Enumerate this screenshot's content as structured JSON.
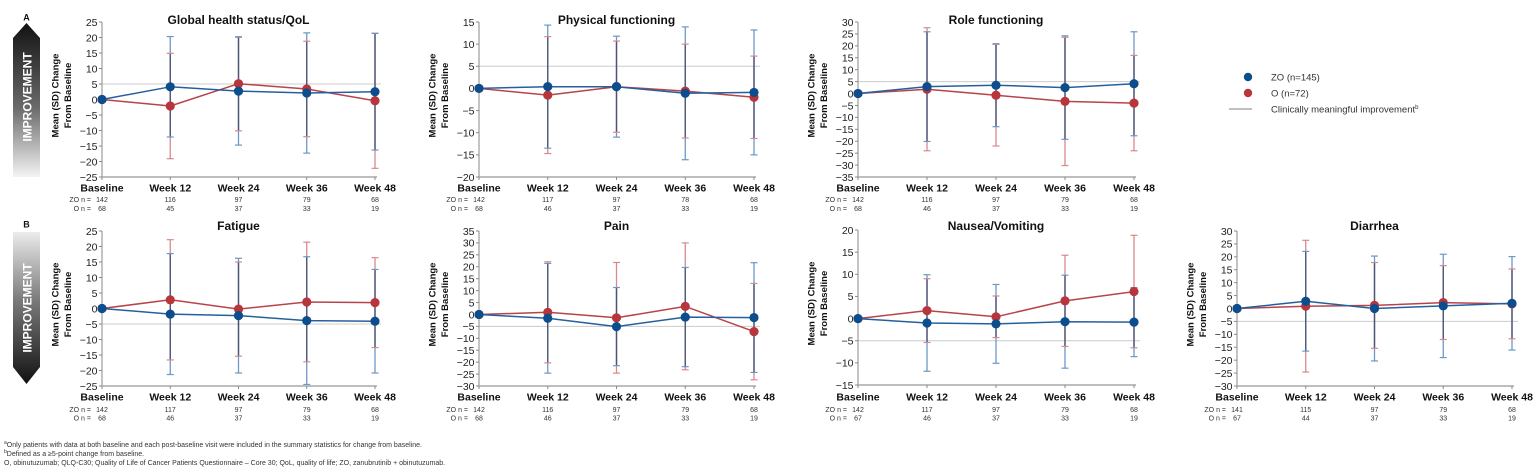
{
  "panels": [
    {
      "label": "A",
      "arrow_text": "IMPROVEMENT",
      "arrow_direction": "up"
    },
    {
      "label": "B",
      "arrow_text": "IMPROVEMENT",
      "arrow_direction": "down"
    }
  ],
  "colors": {
    "ZO": "#0c4e8d",
    "O": "#b8353c",
    "ZO_line": "#25609d",
    "O_line": "#b8444b",
    "ZO_error_bar": "#6b98c5",
    "O_error_bar": "#d8898d",
    "error_bar_overlap": "#4c5473",
    "reference_line": "#cccccc",
    "legend_line": "#9a9a9a"
  },
  "legend": {
    "items": [
      {
        "label": "ZO (n=145)",
        "marker": "dot",
        "series": "ZO"
      },
      {
        "label": "O (n=72)",
        "marker": "dot",
        "series": "O"
      },
      {
        "label": "Clinically meaningful improvement",
        "sup": "b",
        "marker": "line"
      }
    ]
  },
  "footnotes": [
    {
      "marker": "a",
      "text": "Only patients with data at both baseline and each post-baseline visit were included in the summary statistics for change from baseline."
    },
    {
      "marker": "b",
      "text": "Defined as a ≥5-point change from baseline."
    },
    {
      "marker": "",
      "text": "O, obinutuzumab; QLQ-C30; Quality of Life of Cancer Patients Questionnaire – Core 30; QoL, quality of life; ZO, zanubrutinib + obinutuzumab."
    }
  ],
  "chart_data": [
    {
      "type": "line",
      "panel": "A",
      "title": "Global health status/QoL",
      "ylabel": [
        "Mean (SD) Change",
        "From Baseline"
      ],
      "categories": [
        "Baseline",
        "Week 12",
        "Week 24",
        "Week 36",
        "Week 48"
      ],
      "ylim": [
        -25,
        25
      ],
      "yticks": [
        "25",
        "20",
        "15",
        "10",
        "5",
        "0",
        "−5",
        "−10",
        "−15",
        "−20",
        "−25"
      ],
      "reference_line": 5,
      "grid": false,
      "series": [
        {
          "name": "ZO",
          "mean": [
            0,
            4.1,
            2.7,
            2.1,
            2.5
          ],
          "sd": [
            0,
            16.2,
            17.4,
            19.4,
            18.8
          ]
        },
        {
          "name": "O",
          "mean": [
            0,
            -2.1,
            5.1,
            3.4,
            -0.4
          ],
          "sd": [
            0,
            17.0,
            15.2,
            15.4,
            21.8
          ]
        }
      ],
      "n_counts": [
        {
          "label": "ZO n =",
          "values": [
            142,
            116,
            97,
            79,
            68
          ]
        },
        {
          "label": "O n =",
          "values": [
            68,
            45,
            37,
            33,
            19
          ]
        }
      ]
    },
    {
      "type": "line",
      "panel": "A",
      "title": "Physical functioning",
      "ylabel": [
        "Mean (SD) Change",
        "From Baseline"
      ],
      "categories": [
        "Baseline",
        "Week 12",
        "Week 24",
        "Week 36",
        "Week 48"
      ],
      "ylim": [
        -20,
        15
      ],
      "yticks": [
        "15",
        "10",
        "5",
        "0",
        "−5",
        "−10",
        "−15",
        "−20"
      ],
      "reference_line": 5,
      "grid": false,
      "series": [
        {
          "name": "ZO",
          "mean": [
            0,
            0.4,
            0.4,
            -1.1,
            -0.9
          ],
          "sd": [
            0,
            13.9,
            11.4,
            15.0,
            14.1
          ]
        },
        {
          "name": "O",
          "mean": [
            0,
            -1.5,
            0.4,
            -0.6,
            -2.0
          ],
          "sd": [
            0,
            13.2,
            10.3,
            10.6,
            9.3
          ]
        }
      ],
      "n_counts": [
        {
          "label": "ZO n =",
          "values": [
            142,
            117,
            97,
            78,
            68
          ]
        },
        {
          "label": "O n =",
          "values": [
            68,
            46,
            37,
            33,
            19
          ]
        }
      ]
    },
    {
      "type": "line",
      "panel": "A",
      "title": "Role functioning",
      "ylabel": [
        "Mean (SD) Change",
        "From Baseline"
      ],
      "categories": [
        "Baseline",
        "Week 12",
        "Week 24",
        "Week 36",
        "Week 48"
      ],
      "ylim": [
        -35,
        30
      ],
      "yticks": [
        "30",
        "25",
        "20",
        "15",
        "10",
        "5",
        "0",
        "−5",
        "−10",
        "−15",
        "−20",
        "−25",
        "−30",
        "−35"
      ],
      "reference_line": 5,
      "grid": false,
      "series": [
        {
          "name": "ZO",
          "mean": [
            0,
            2.9,
            3.5,
            2.5,
            4.1
          ],
          "sd": [
            0,
            23.0,
            17.4,
            21.7,
            21.8
          ]
        },
        {
          "name": "O",
          "mean": [
            0,
            1.8,
            -0.7,
            -3.3,
            -4.0
          ],
          "sd": [
            0,
            25.8,
            21.3,
            26.9,
            20.0
          ]
        }
      ],
      "n_counts": [
        {
          "label": "ZO n =",
          "values": [
            142,
            116,
            97,
            79,
            68
          ]
        },
        {
          "label": "O n =",
          "values": [
            68,
            46,
            37,
            33,
            19
          ]
        }
      ]
    },
    {
      "type": "line",
      "panel": "B",
      "title": "Fatigue",
      "ylabel": [
        "Mean (SD) Change",
        "From Baseline"
      ],
      "categories": [
        "Baseline",
        "Week 12",
        "Week 24",
        "Week 36",
        "Week 48"
      ],
      "ylim": [
        -25,
        25
      ],
      "yticks": [
        "25",
        "20",
        "15",
        "10",
        "5",
        "0",
        "−5",
        "−10",
        "−15",
        "−20",
        "−25"
      ],
      "reference_line": -5,
      "grid": false,
      "series": [
        {
          "name": "ZO",
          "mean": [
            0,
            -1.8,
            -2.3,
            -3.9,
            -4.1
          ],
          "sd": [
            0,
            19.5,
            18.5,
            20.6,
            16.7
          ]
        },
        {
          "name": "O",
          "mean": [
            0,
            2.8,
            -0.2,
            2.1,
            1.9
          ],
          "sd": [
            0,
            19.4,
            15.2,
            19.3,
            14.5
          ]
        }
      ],
      "n_counts": [
        {
          "label": "ZO n =",
          "values": [
            142,
            117,
            97,
            79,
            68
          ]
        },
        {
          "label": "O n =",
          "values": [
            68,
            46,
            37,
            33,
            19
          ]
        }
      ]
    },
    {
      "type": "line",
      "panel": "B",
      "title": "Pain",
      "ylabel": [
        "Mean (SD) Change",
        "From Baseline"
      ],
      "categories": [
        "Baseline",
        "Week 12",
        "Week 24",
        "Week 36",
        "Week 48"
      ],
      "ylim": [
        -30,
        35
      ],
      "yticks": [
        "35",
        "30",
        "25",
        "20",
        "15",
        "10",
        "5",
        "0",
        "−5",
        "−10",
        "−15",
        "−20",
        "−25",
        "−30"
      ],
      "reference_line": -5,
      "grid": false,
      "series": [
        {
          "name": "ZO",
          "mean": [
            0,
            -1.6,
            -5.1,
            -1.1,
            -1.3
          ],
          "sd": [
            0,
            23.0,
            16.4,
            20.8,
            23.0
          ]
        },
        {
          "name": "O",
          "mean": [
            0,
            0.9,
            -1.4,
            3.4,
            -7.2
          ],
          "sd": [
            0,
            21.2,
            23.2,
            26.6,
            20.2
          ]
        }
      ],
      "n_counts": [
        {
          "label": "ZO n =",
          "values": [
            142,
            116,
            97,
            79,
            68
          ]
        },
        {
          "label": "O n =",
          "values": [
            68,
            46,
            37,
            33,
            19
          ]
        }
      ]
    },
    {
      "type": "line",
      "panel": "B",
      "title": "Nausea/Vomiting",
      "ylabel": [
        "Mean (SD) Change",
        "From Baseline"
      ],
      "categories": [
        "Baseline",
        "Week 12",
        "Week 24",
        "Week 36",
        "Week 48"
      ],
      "ylim": [
        -15,
        20
      ],
      "yticks": [
        "20",
        "15",
        "10",
        "5",
        "0",
        "−5",
        "−10",
        "−15"
      ],
      "reference_line": -5,
      "grid": false,
      "series": [
        {
          "name": "ZO",
          "mean": [
            0,
            -1.0,
            -1.2,
            -0.7,
            -0.8
          ],
          "sd": [
            0,
            10.9,
            8.9,
            10.5,
            7.8
          ]
        },
        {
          "name": "O",
          "mean": [
            0,
            1.8,
            0.4,
            4.0,
            6.1
          ],
          "sd": [
            0,
            7.2,
            4.7,
            10.3,
            12.7
          ]
        }
      ],
      "n_counts": [
        {
          "label": "ZO n =",
          "values": [
            142,
            117,
            97,
            79,
            68
          ]
        },
        {
          "label": "O n =",
          "values": [
            67,
            46,
            37,
            33,
            19
          ]
        }
      ]
    },
    {
      "type": "line",
      "panel": "B",
      "title": "Diarrhea",
      "ylabel": [
        "Mean (SD) Change",
        "From Baseline"
      ],
      "categories": [
        "Baseline",
        "Week 12",
        "Week 24",
        "Week 36",
        "Week 48"
      ],
      "ylim": [
        -30,
        30
      ],
      "yticks": [
        "30",
        "25",
        "20",
        "15",
        "10",
        "5",
        "0",
        "−5",
        "−10",
        "−15",
        "−20",
        "−25",
        "−30"
      ],
      "reference_line": -5,
      "grid": false,
      "series": [
        {
          "name": "ZO",
          "mean": [
            0,
            2.8,
            0.0,
            1.0,
            2.0
          ],
          "sd": [
            0,
            19.3,
            20.3,
            20.0,
            18.1
          ]
        },
        {
          "name": "O",
          "mean": [
            0,
            0.9,
            1.2,
            2.3,
            1.8
          ],
          "sd": [
            0,
            25.5,
            16.6,
            14.3,
            13.5
          ]
        }
      ],
      "n_counts": [
        {
          "label": "ZO n =",
          "values": [
            141,
            115,
            97,
            79,
            68
          ]
        },
        {
          "label": "O n =",
          "values": [
            67,
            44,
            37,
            33,
            19
          ]
        }
      ]
    }
  ]
}
